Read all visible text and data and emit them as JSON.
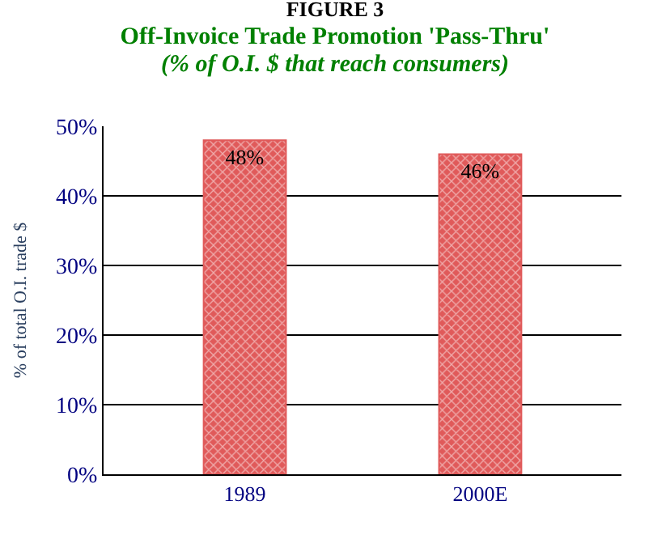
{
  "chart_data": {
    "type": "bar",
    "title": "FIGURE 3",
    "subtitle": "Off-Invoice Trade Promotion 'Pass-Thru'\n(% of O.I. $ that reach consumers)",
    "ylabel": "% of total O.I. trade $",
    "categories": [
      "1989",
      "2000E"
    ],
    "values": [
      48,
      46
    ],
    "value_labels": [
      "48%",
      "46%"
    ],
    "color": "#e05a5a",
    "ylim": [
      0,
      50
    ],
    "yticks": [
      {
        "value": 0,
        "label": "0%"
      },
      {
        "value": 10,
        "label": "10%"
      },
      {
        "value": 20,
        "label": "20%"
      },
      {
        "value": 30,
        "label": "30%"
      },
      {
        "value": 40,
        "label": "40%"
      },
      {
        "value": 50,
        "label": "50%"
      }
    ],
    "grid": "y",
    "legend": false
  }
}
